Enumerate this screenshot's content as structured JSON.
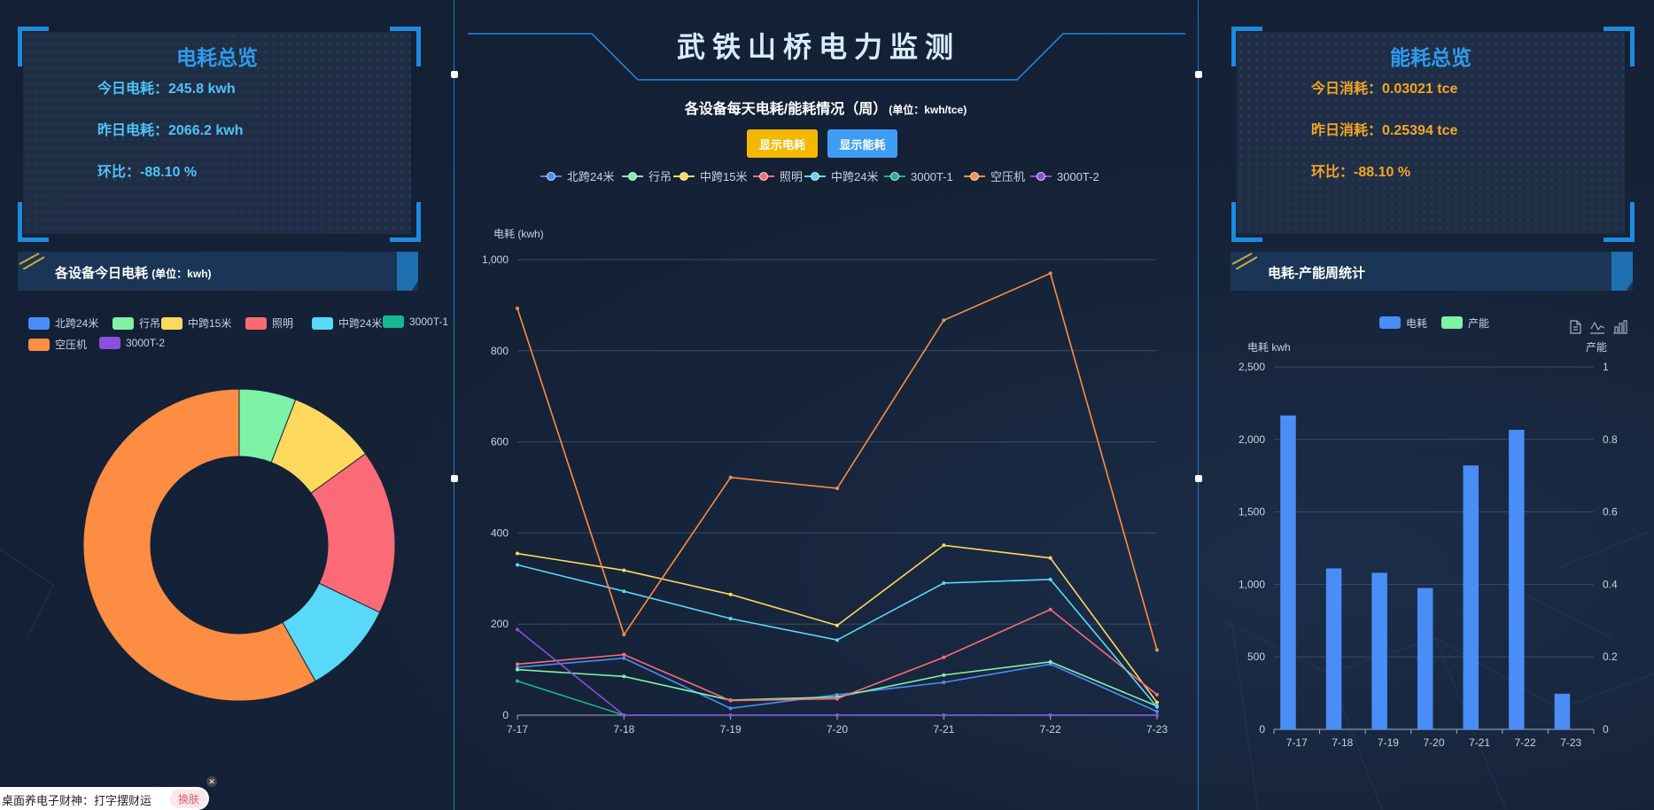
{
  "header": {
    "title": "武铁山桥电力监测"
  },
  "left": {
    "overview": {
      "title": "电耗总览",
      "today": "今日电耗：245.8 kwh",
      "yesterday": "昨日电耗：2066.2 kwh",
      "ratio": "环比：-88.10 %"
    },
    "section": {
      "title": "各设备今日电耗",
      "unit": "(单位：kwh)"
    }
  },
  "center": {
    "chart_title": "各设备每天电耗/能耗情况（周）",
    "chart_unit": "(单位：kwh/tce)",
    "btn_power": "显示电耗",
    "btn_energy": "显示能耗"
  },
  "right": {
    "overview": {
      "title": "能耗总览",
      "today": "今日消耗：0.03021 tce",
      "yesterday": "昨日消耗：0.25394 tce",
      "ratio": "环比：-88.10 %"
    },
    "section": {
      "title": "电耗-产能周统计"
    },
    "toolbox": [
      "doc-icon",
      "line-chart-icon",
      "bar-chart-icon"
    ]
  },
  "toast": {
    "text": "桌面养电子财神：打字摆财运",
    "button": "换肤"
  },
  "colors": {
    "accent": "#2d9cf0",
    "stat_left": "#4fc3f7",
    "stat_right": "#f5a623",
    "btn_power": "#f5b800",
    "btn_energy": "#3f9cf5"
  },
  "chart_data": [
    {
      "type": "pie",
      "variant": "donut",
      "legend": [
        {
          "name": "北跨24米",
          "color": "#4a8df6"
        },
        {
          "name": "行吊",
          "color": "#7ef3a8"
        },
        {
          "name": "中跨15米",
          "color": "#fcd95c"
        },
        {
          "name": "照明",
          "color": "#fb6b77"
        },
        {
          "name": "中跨24米",
          "color": "#58d9f9"
        },
        {
          "name": "3000T-1",
          "color": "#16b88d"
        },
        {
          "name": "空压机",
          "color": "#fd8d42"
        },
        {
          "name": "3000T-2",
          "color": "#8b4fe0"
        }
      ],
      "slices": [
        {
          "name": "北跨24米",
          "value": 0,
          "color": "#4a8df6"
        },
        {
          "name": "行吊",
          "value": 14.5,
          "color": "#7ef3a8"
        },
        {
          "name": "中跨15米",
          "value": 22.5,
          "color": "#fcd95c"
        },
        {
          "name": "照明",
          "value": 42,
          "color": "#fb6b77"
        },
        {
          "name": "中跨24米",
          "value": 24,
          "color": "#58d9f9"
        },
        {
          "name": "3000T-1",
          "value": 0,
          "color": "#16b88d"
        },
        {
          "name": "空压机",
          "value": 143,
          "color": "#fd8d42"
        },
        {
          "name": "3000T-2",
          "value": 0,
          "color": "#8b4fe0"
        }
      ]
    },
    {
      "type": "line",
      "ylabel": "电耗 (kwh)",
      "ylim": [
        0,
        1000
      ],
      "yticks": [
        "0",
        "200",
        "400",
        "600",
        "800",
        "1,000"
      ],
      "categories": [
        "7-17",
        "7-18",
        "7-19",
        "7-20",
        "7-21",
        "7-22",
        "7-23"
      ],
      "series": [
        {
          "name": "北跨24米",
          "color": "#4a8df6",
          "values": [
            105,
            125,
            15,
            45,
            72,
            112,
            8
          ]
        },
        {
          "name": "行吊",
          "color": "#7ef3a8",
          "values": [
            100,
            85,
            33,
            40,
            88,
            117,
            20
          ]
        },
        {
          "name": "中跨15米",
          "color": "#fcd95c",
          "values": [
            355,
            318,
            265,
            197,
            373,
            345,
            28
          ]
        },
        {
          "name": "照明",
          "color": "#fb6b77",
          "values": [
            112,
            133,
            32,
            36,
            127,
            232,
            45
          ]
        },
        {
          "name": "中跨24米",
          "color": "#58d9f9",
          "values": [
            330,
            272,
            212,
            165,
            290,
            298,
            18
          ]
        },
        {
          "name": "3000T-1",
          "color": "#16b88d",
          "values": [
            75,
            0,
            0,
            0,
            0,
            0,
            0
          ]
        },
        {
          "name": "空压机",
          "color": "#fd8d42",
          "values": [
            893,
            177,
            522,
            498,
            867,
            970,
            143
          ]
        },
        {
          "name": "3000T-2",
          "color": "#8b4fe0",
          "values": [
            188,
            0,
            0,
            0,
            0,
            0,
            0
          ]
        }
      ]
    },
    {
      "type": "bar",
      "categories": [
        "7-17",
        "7-18",
        "7-19",
        "7-20",
        "7-21",
        "7-22",
        "7-23"
      ],
      "ylabel_left": "电耗 kwh",
      "ylabel_right": "产能",
      "ylim": [
        0,
        2500
      ],
      "ylim_right": [
        0,
        1
      ],
      "yticks_left": [
        "0",
        "500",
        "1,000",
        "1,500",
        "2,000",
        "2,500"
      ],
      "yticks_right": [
        "0",
        "0.2",
        "0.4",
        "0.6",
        "0.8",
        "1"
      ],
      "legend": [
        {
          "name": "电耗",
          "color": "#4a8df6"
        },
        {
          "name": "产能",
          "color": "#7ef3a8"
        }
      ],
      "series": [
        {
          "name": "电耗",
          "color": "#4a8df6",
          "values": [
            2165,
            1110,
            1080,
            975,
            1820,
            2066,
            246
          ]
        },
        {
          "name": "产能",
          "color": "#7ef3a8",
          "values": [
            0,
            0,
            0,
            0,
            0,
            0,
            0
          ]
        }
      ]
    }
  ]
}
